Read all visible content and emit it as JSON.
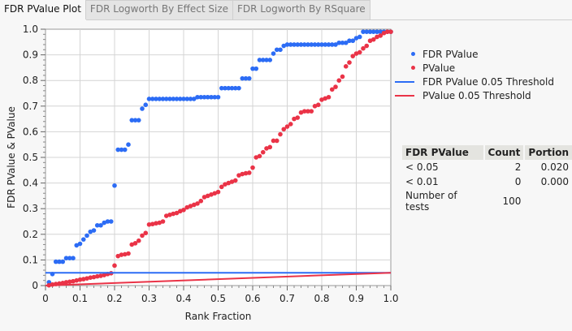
{
  "tabs": [
    {
      "label": "FDR PValue Plot",
      "active": true
    },
    {
      "label": "FDR Logworth By Effect Size",
      "active": false
    },
    {
      "label": "FDR Logworth By RSquare",
      "active": false
    }
  ],
  "colors": {
    "fdr": "#2c6cf5",
    "pvalue": "#ea3347"
  },
  "chart_data": {
    "type": "scatter",
    "xlabel": "Rank Fraction",
    "ylabel": "FDR PValue & PValue",
    "xlim": [
      0,
      1
    ],
    "ylim": [
      0,
      1
    ],
    "grid": true,
    "legend_placement": "right",
    "xticks": [
      "0",
      "0.1",
      "0.2",
      "0.3",
      "0.4",
      "0.5",
      "0.6",
      "0.7",
      "0.8",
      "0.9",
      "1.0"
    ],
    "yticks": [
      "0",
      "0.1",
      "0.2",
      "0.3",
      "0.4",
      "0.5",
      "0.6",
      "0.7",
      "0.8",
      "0.9",
      "1.0"
    ],
    "x_step": 0.01,
    "series": [
      {
        "name": "FDR PValue",
        "marker": "dot",
        "color": "#2c6cf5",
        "values": [
          0.013,
          0.045,
          0.093,
          0.093,
          0.093,
          0.107,
          0.107,
          0.107,
          0.157,
          0.163,
          0.18,
          0.195,
          0.21,
          0.215,
          0.235,
          0.235,
          0.245,
          0.25,
          0.25,
          0.39,
          0.53,
          0.53,
          0.53,
          0.55,
          0.645,
          0.645,
          0.645,
          0.69,
          0.705,
          0.728,
          0.728,
          0.728,
          0.728,
          0.728,
          0.728,
          0.728,
          0.728,
          0.728,
          0.728,
          0.728,
          0.728,
          0.728,
          0.728,
          0.735,
          0.735,
          0.735,
          0.735,
          0.735,
          0.735,
          0.735,
          0.77,
          0.77,
          0.77,
          0.77,
          0.77,
          0.77,
          0.808,
          0.808,
          0.808,
          0.846,
          0.846,
          0.88,
          0.88,
          0.88,
          0.88,
          0.905,
          0.92,
          0.92,
          0.935,
          0.94,
          0.94,
          0.94,
          0.94,
          0.94,
          0.94,
          0.94,
          0.94,
          0.94,
          0.94,
          0.94,
          0.94,
          0.94,
          0.94,
          0.94,
          0.947,
          0.947,
          0.947,
          0.955,
          0.955,
          0.965,
          0.97,
          0.99,
          0.99,
          0.99,
          0.99,
          0.99,
          0.99,
          0.99,
          0.99,
          0.99
        ]
      },
      {
        "name": "PValue",
        "marker": "dot",
        "color": "#ea3347",
        "values": [
          0.001,
          0.004,
          0.006,
          0.008,
          0.01,
          0.013,
          0.015,
          0.017,
          0.02,
          0.023,
          0.025,
          0.028,
          0.031,
          0.033,
          0.036,
          0.038,
          0.041,
          0.045,
          0.048,
          0.078,
          0.115,
          0.12,
          0.122,
          0.125,
          0.16,
          0.165,
          0.175,
          0.195,
          0.205,
          0.238,
          0.24,
          0.243,
          0.245,
          0.25,
          0.272,
          0.276,
          0.28,
          0.283,
          0.29,
          0.295,
          0.305,
          0.31,
          0.315,
          0.32,
          0.33,
          0.345,
          0.35,
          0.355,
          0.36,
          0.365,
          0.385,
          0.395,
          0.4,
          0.405,
          0.41,
          0.43,
          0.435,
          0.438,
          0.44,
          0.46,
          0.5,
          0.505,
          0.52,
          0.535,
          0.54,
          0.565,
          0.565,
          0.59,
          0.61,
          0.62,
          0.63,
          0.65,
          0.655,
          0.675,
          0.68,
          0.68,
          0.68,
          0.7,
          0.705,
          0.725,
          0.73,
          0.735,
          0.765,
          0.775,
          0.8,
          0.815,
          0.855,
          0.87,
          0.895,
          0.905,
          0.91,
          0.925,
          0.935,
          0.955,
          0.96,
          0.97,
          0.975,
          0.985,
          0.99,
          0.99
        ]
      },
      {
        "name": "FDR PValue 0.05 Threshold",
        "marker": "line",
        "color": "#2c6cf5",
        "points": [
          [
            0,
            0.05
          ],
          [
            1,
            0.05
          ]
        ]
      },
      {
        "name": "PValue 0.05 Threshold",
        "marker": "line",
        "color": "#ea3347",
        "points": [
          [
            0,
            0
          ],
          [
            1,
            0.05
          ]
        ]
      }
    ]
  },
  "summary_table": {
    "headers": [
      "FDR PValue",
      "Count",
      "Portion"
    ],
    "rows": [
      [
        "< 0.05",
        "2",
        "0.020"
      ],
      [
        "< 0.01",
        "0",
        "0.000"
      ],
      [
        "Number of tests",
        "100",
        ""
      ]
    ]
  }
}
